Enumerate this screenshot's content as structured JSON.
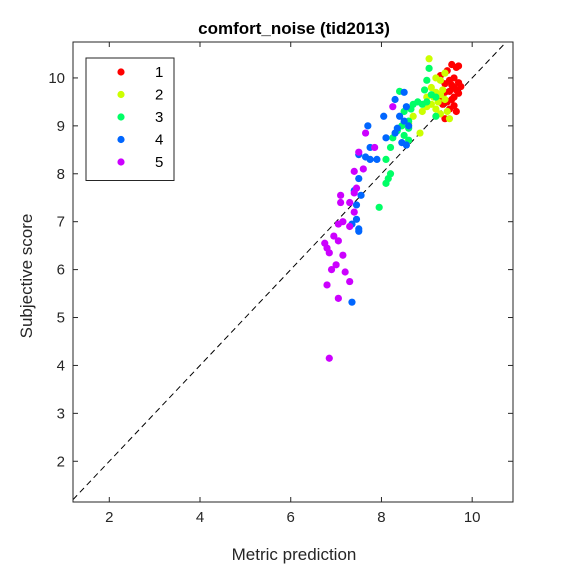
{
  "chart_data": {
    "type": "scatter",
    "title": "comfort_noise (tid2013)",
    "xlabel": "Metric prediction",
    "ylabel": "Subjective score",
    "xlim": [
      1.2,
      10.9
    ],
    "ylim": [
      1.15,
      10.75
    ],
    "xticks": [
      2,
      4,
      6,
      8,
      10
    ],
    "yticks": [
      2,
      3,
      4,
      5,
      6,
      7,
      8,
      9,
      10
    ],
    "grid": false,
    "legend_position": "top-left",
    "reference_line": "y = x (dashed)",
    "series": [
      {
        "name": "1",
        "color": "#ff0000",
        "points": [
          [
            9.55,
            10.28
          ],
          [
            9.65,
            10.22
          ],
          [
            9.7,
            10.25
          ],
          [
            9.45,
            10.15
          ],
          [
            9.3,
            10.05
          ],
          [
            9.6,
            10.0
          ],
          [
            9.5,
            9.95
          ],
          [
            9.4,
            9.88
          ],
          [
            9.55,
            9.85
          ],
          [
            9.7,
            9.9
          ],
          [
            9.6,
            9.8
          ],
          [
            9.75,
            9.82
          ],
          [
            9.65,
            9.75
          ],
          [
            9.5,
            9.72
          ],
          [
            9.4,
            9.7
          ],
          [
            9.7,
            9.68
          ],
          [
            9.6,
            9.6
          ],
          [
            9.55,
            9.55
          ],
          [
            9.45,
            9.5
          ],
          [
            9.35,
            9.45
          ],
          [
            9.6,
            9.42
          ],
          [
            9.5,
            9.35
          ],
          [
            9.4,
            9.15
          ],
          [
            9.65,
            9.3
          ],
          [
            9.3,
            9.6
          ]
        ]
      },
      {
        "name": "2",
        "color": "#ccff00",
        "points": [
          [
            9.05,
            10.4
          ],
          [
            9.2,
            10.0
          ],
          [
            9.3,
            9.95
          ],
          [
            9.4,
            10.1
          ],
          [
            9.1,
            9.8
          ],
          [
            9.2,
            9.7
          ],
          [
            9.0,
            9.6
          ],
          [
            9.3,
            9.65
          ],
          [
            9.4,
            9.55
          ],
          [
            9.25,
            9.5
          ],
          [
            9.1,
            9.45
          ],
          [
            9.0,
            9.4
          ],
          [
            9.2,
            9.35
          ],
          [
            9.45,
            9.3
          ],
          [
            9.3,
            9.25
          ],
          [
            8.9,
            9.3
          ],
          [
            8.7,
            9.2
          ],
          [
            9.5,
            9.15
          ],
          [
            8.85,
            8.85
          ],
          [
            8.6,
            9.05
          ],
          [
            9.35,
            9.75
          ],
          [
            9.15,
            9.6
          ]
        ]
      },
      {
        "name": "3",
        "color": "#00ff66",
        "points": [
          [
            9.05,
            10.2
          ],
          [
            9.0,
            9.95
          ],
          [
            8.95,
            9.75
          ],
          [
            8.4,
            9.72
          ],
          [
            9.1,
            9.65
          ],
          [
            9.2,
            9.6
          ],
          [
            9.0,
            9.5
          ],
          [
            8.9,
            9.45
          ],
          [
            8.8,
            9.5
          ],
          [
            8.7,
            9.45
          ],
          [
            8.65,
            9.35
          ],
          [
            8.5,
            9.3
          ],
          [
            9.2,
            9.2
          ],
          [
            8.6,
            9.1
          ],
          [
            8.45,
            9.0
          ],
          [
            8.6,
            8.95
          ],
          [
            8.35,
            8.9
          ],
          [
            8.5,
            8.8
          ],
          [
            8.25,
            8.75
          ],
          [
            8.6,
            8.7
          ],
          [
            8.2,
            8.55
          ],
          [
            8.1,
            8.3
          ],
          [
            8.2,
            8.0
          ],
          [
            8.15,
            7.9
          ],
          [
            8.1,
            7.8
          ],
          [
            7.95,
            7.3
          ]
        ]
      },
      {
        "name": "4",
        "color": "#0066ff",
        "points": [
          [
            8.5,
            9.7
          ],
          [
            8.3,
            9.55
          ],
          [
            8.55,
            9.4
          ],
          [
            8.4,
            9.2
          ],
          [
            8.05,
            9.2
          ],
          [
            8.5,
            9.1
          ],
          [
            7.7,
            9.0
          ],
          [
            8.6,
            9.0
          ],
          [
            8.35,
            8.95
          ],
          [
            8.3,
            8.85
          ],
          [
            8.1,
            8.75
          ],
          [
            8.45,
            8.65
          ],
          [
            8.55,
            8.6
          ],
          [
            7.75,
            8.55
          ],
          [
            7.5,
            8.4
          ],
          [
            7.65,
            8.35
          ],
          [
            7.75,
            8.3
          ],
          [
            7.9,
            8.3
          ],
          [
            7.5,
            7.9
          ],
          [
            7.4,
            7.65
          ],
          [
            7.55,
            7.55
          ],
          [
            7.45,
            7.35
          ],
          [
            7.45,
            7.05
          ],
          [
            7.35,
            6.95
          ],
          [
            7.5,
            6.85
          ],
          [
            7.5,
            6.8
          ],
          [
            7.35,
            5.32
          ]
        ]
      },
      {
        "name": "5",
        "color": "#cc00ff",
        "points": [
          [
            8.25,
            9.4
          ],
          [
            7.65,
            8.85
          ],
          [
            7.85,
            8.55
          ],
          [
            7.5,
            8.45
          ],
          [
            7.6,
            8.1
          ],
          [
            7.4,
            8.05
          ],
          [
            7.45,
            7.7
          ],
          [
            7.4,
            7.6
          ],
          [
            7.1,
            7.55
          ],
          [
            7.3,
            7.4
          ],
          [
            7.1,
            7.4
          ],
          [
            7.4,
            7.2
          ],
          [
            7.15,
            7.0
          ],
          [
            7.3,
            6.9
          ],
          [
            7.05,
            6.95
          ],
          [
            6.95,
            6.7
          ],
          [
            7.05,
            6.6
          ],
          [
            6.75,
            6.55
          ],
          [
            6.8,
            6.45
          ],
          [
            6.85,
            6.35
          ],
          [
            7.15,
            6.3
          ],
          [
            7.0,
            6.1
          ],
          [
            6.9,
            6.0
          ],
          [
            7.2,
            5.95
          ],
          [
            7.3,
            5.75
          ],
          [
            6.8,
            5.68
          ],
          [
            7.05,
            5.4
          ],
          [
            6.85,
            4.15
          ]
        ]
      }
    ]
  }
}
